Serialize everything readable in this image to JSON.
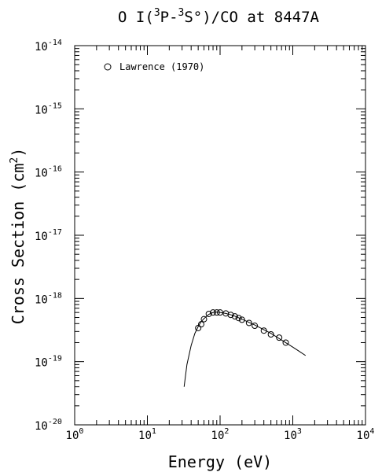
{
  "chart_data": {
    "type": "scatter",
    "title_main": "O I(",
    "title_sup1": "3",
    "title_mid": "P-",
    "title_sup2": "3",
    "title_rest": "S°)/CO at 8447A",
    "xlabel": "Energy (eV)",
    "ylabel_main": "Cross Section (cm",
    "ylabel_sup": "2",
    "ylabel_close": ")",
    "x_scale": "log",
    "y_scale": "log",
    "xlim": [
      1,
      10000
    ],
    "ylim": [
      1e-20,
      1e-14
    ],
    "grid": false,
    "legend_placement": "top-left",
    "x_tick_labels": [
      {
        "base": "10",
        "exp": "0",
        "value": 1
      },
      {
        "base": "10",
        "exp": "1",
        "value": 10
      },
      {
        "base": "10",
        "exp": "2",
        "value": 100
      },
      {
        "base": "10",
        "exp": "3",
        "value": 1000
      },
      {
        "base": "10",
        "exp": "4",
        "value": 10000
      }
    ],
    "y_tick_labels": [
      {
        "base": "10",
        "exp": "-20",
        "value": 1e-20
      },
      {
        "base": "10",
        "exp": "-19",
        "value": 1e-19
      },
      {
        "base": "10",
        "exp": "-18",
        "value": 1e-18
      },
      {
        "base": "10",
        "exp": "-17",
        "value": 1e-17
      },
      {
        "base": "10",
        "exp": "-16",
        "value": 1e-16
      },
      {
        "base": "10",
        "exp": "-15",
        "value": 1e-15
      },
      {
        "base": "10",
        "exp": "-14",
        "value": 1e-14
      }
    ],
    "series": [
      {
        "name": "Lawrence (1970)",
        "marker": "circle",
        "x": [
          50,
          55,
          60,
          70,
          80,
          90,
          100,
          120,
          140,
          160,
          180,
          200,
          250,
          300,
          400,
          500,
          650,
          800
        ],
        "y": [
          3.4e-19,
          3.9e-19,
          4.7e-19,
          5.7e-19,
          6e-19,
          6e-19,
          6e-19,
          5.8e-19,
          5.5e-19,
          5.2e-19,
          4.9e-19,
          4.6e-19,
          4.1e-19,
          3.7e-19,
          3.1e-19,
          2.7e-19,
          2.4e-19,
          2e-19
        ]
      },
      {
        "line": true,
        "x": [
          32,
          35,
          40,
          45,
          50,
          55,
          60,
          70,
          80,
          90,
          100,
          120,
          150,
          200,
          300,
          400,
          500,
          700,
          1000,
          1500
        ],
        "y": [
          4e-20,
          9e-20,
          1.8e-19,
          2.8e-19,
          3.6e-19,
          4.3e-19,
          4.8e-19,
          5.6e-19,
          6e-19,
          6.1e-19,
          6e-19,
          5.8e-19,
          5.4e-19,
          4.7e-19,
          3.8e-19,
          3.2e-19,
          2.8e-19,
          2.2e-19,
          1.7e-19,
          1.25e-19
        ]
      }
    ]
  }
}
